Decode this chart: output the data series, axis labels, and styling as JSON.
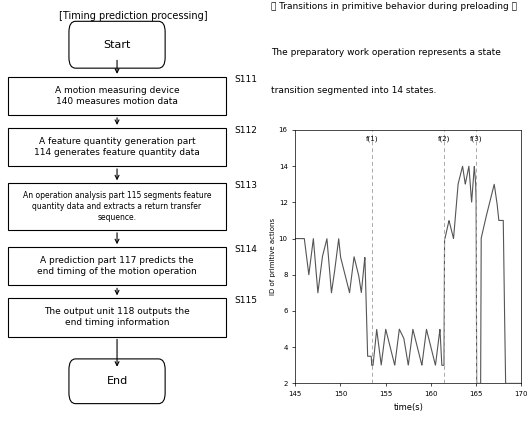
{
  "title_left": "[Timing prediction processing]",
  "title_right_line1": "《 Transitions in primitive behavior during preloading 》",
  "title_right_line2": "The preparatory work operation represents a state\ntransition segmented into 14 states.",
  "flowchart_steps": [
    {
      "label": "Start",
      "type": "rounded",
      "step": null
    },
    {
      "label": "A motion measuring device\n140 measures motion data",
      "type": "rect",
      "step": "S111"
    },
    {
      "label": "A feature quantity generation part\n114 generates feature quantity data",
      "type": "rect",
      "step": "S112"
    },
    {
      "label": "An operation analysis part 115 segments feature\nquantity data and extracts a return transfer\nsequence.",
      "type": "rect_small",
      "step": "S113"
    },
    {
      "label": "A prediction part 117 predicts the\nend timing of the motion operation",
      "type": "rect",
      "step": "S114"
    },
    {
      "label": "The output unit 118 outputs the\nend timing information",
      "type": "rect",
      "step": "S115"
    },
    {
      "label": "End",
      "type": "rounded",
      "step": null
    }
  ],
  "graph_xlim": [
    145,
    170
  ],
  "graph_ylim": [
    2,
    16
  ],
  "graph_xlabel": "time(s)",
  "graph_ylabel": "ID of primitive actions",
  "graph_yticks": [
    2,
    4,
    6,
    8,
    10,
    12,
    14,
    16
  ],
  "graph_xticks": [
    145,
    150,
    155,
    160,
    165,
    170
  ],
  "vlines": [
    153.5,
    161.5,
    165.0
  ],
  "vline_labels": [
    "f(1)",
    "f(2)",
    "f(3)"
  ],
  "bg_color": "#ffffff",
  "line_color": "#555555",
  "vline_color": "#aaaaaa"
}
